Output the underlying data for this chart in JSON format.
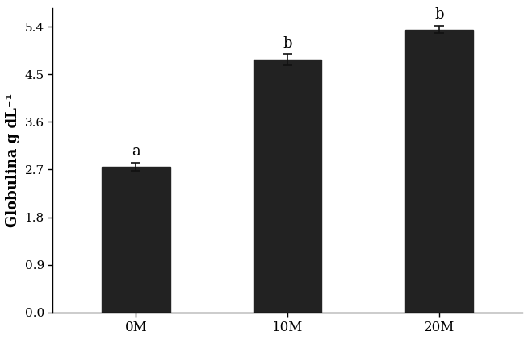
{
  "categories": [
    "0M",
    "10M",
    "20M"
  ],
  "values": [
    2.75,
    4.78,
    5.35
  ],
  "errors": [
    0.08,
    0.1,
    0.07
  ],
  "bar_color": "#222222",
  "bar_width": 0.45,
  "letters": [
    "a",
    "b",
    "b"
  ],
  "ylabel": "Globulina g dL⁻¹",
  "ylim": [
    0,
    5.76
  ],
  "yticks": [
    0,
    0.9,
    1.8,
    2.7,
    3.6,
    4.5,
    5.4
  ],
  "letter_fontsize": 13,
  "ylabel_fontsize": 13,
  "tick_fontsize": 11,
  "xtick_fontsize": 12,
  "background_color": "#ffffff",
  "edge_color": "#222222",
  "x_positions": [
    0,
    1,
    2
  ],
  "xlim": [
    -0.55,
    2.55
  ]
}
